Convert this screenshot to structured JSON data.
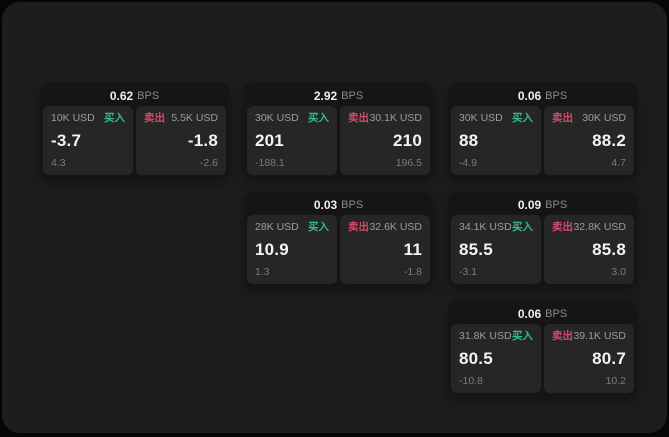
{
  "labels": {
    "buy": "买入",
    "sell": "卖出",
    "bps_unit": "BPS"
  },
  "colors": {
    "page_bg": "#060606",
    "panel_bg": "#1d1d1d",
    "card_bg": "#151515",
    "tile_bg": "#262626",
    "buy_accent": "#2fbf87",
    "sell_accent": "#d8486b",
    "value_text": "#f3f3f3",
    "muted_text": "#9d9d9d"
  },
  "cards": [
    {
      "bps": "0.62",
      "buy": {
        "size": "10K USD",
        "value": "-3.7",
        "delta": "4.3"
      },
      "sell": {
        "size": "5.5K USD",
        "value": "-1.8",
        "delta": "-2.6"
      }
    },
    {
      "bps": "2.92",
      "buy": {
        "size": "30K USD",
        "value": "201",
        "delta": "-188.1"
      },
      "sell": {
        "size": "30.1K USD",
        "value": "210",
        "delta": "196.5"
      }
    },
    {
      "bps": "0.06",
      "buy": {
        "size": "30K USD",
        "value": "88",
        "delta": "-4.9"
      },
      "sell": {
        "size": "30K USD",
        "value": "88.2",
        "delta": "4.7"
      }
    },
    {
      "bps": "0.03",
      "buy": {
        "size": "28K USD",
        "value": "10.9",
        "delta": "1.3"
      },
      "sell": {
        "size": "32.6K USD",
        "value": "11",
        "delta": "-1.8"
      }
    },
    {
      "bps": "0.09",
      "buy": {
        "size": "34.1K USD",
        "value": "85.5",
        "delta": "-3.1"
      },
      "sell": {
        "size": "32.8K USD",
        "value": "85.8",
        "delta": "3.0"
      }
    },
    {
      "bps": "0.06",
      "buy": {
        "size": "31.8K USD",
        "value": "80.5",
        "delta": "-10.8"
      },
      "sell": {
        "size": "39.1K USD",
        "value": "80.7",
        "delta": "10.2"
      }
    }
  ]
}
